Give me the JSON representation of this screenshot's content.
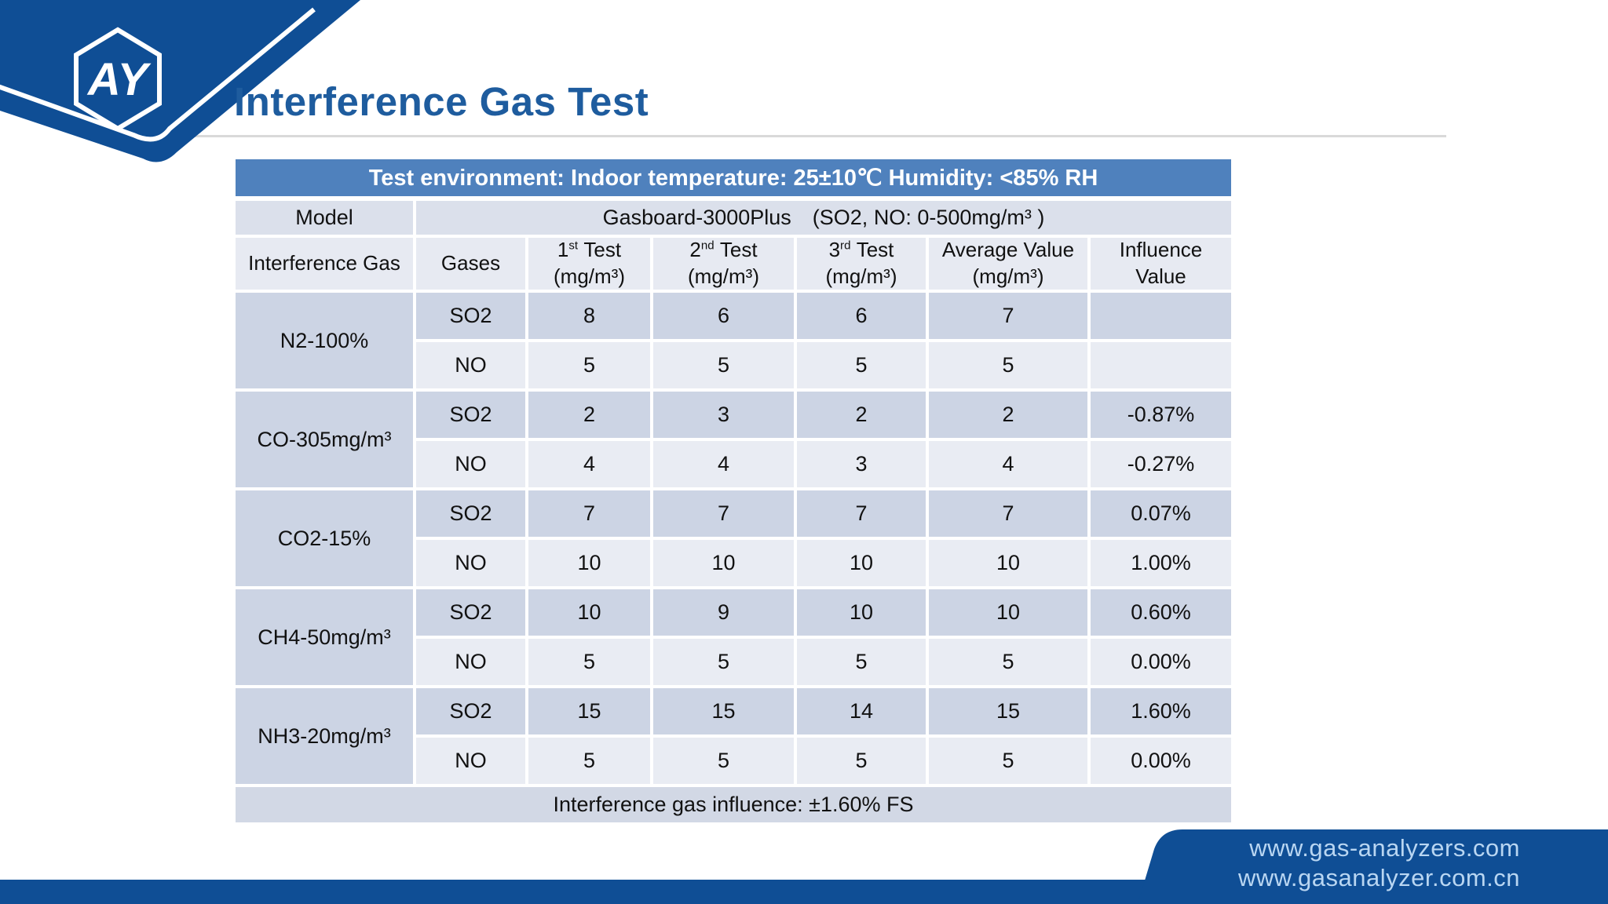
{
  "page": {
    "title": "Interference Gas Test"
  },
  "brand": {
    "logo_text": "AY"
  },
  "table": {
    "env_header": "Test environment: Indoor temperature: 25±10℃ Humidity: <85% RH",
    "model_label": "Model",
    "model_value": "Gasboard-3000Plus (SO2, NO: 0-500mg/m³ )",
    "columns": [
      {
        "label": "Interference Gas"
      },
      {
        "label": "Gases"
      },
      {
        "num": "1",
        "ord": "st",
        "word": "Test",
        "unit": "(mg/m³)"
      },
      {
        "num": "2",
        "ord": "nd",
        "word": "Test",
        "unit": "(mg/m³)"
      },
      {
        "num": "3",
        "ord": "rd",
        "word": "Test",
        "unit": "(mg/m³)"
      },
      {
        "line1": "Average Value",
        "unit": "(mg/m³)"
      },
      {
        "line1": "Influence",
        "line2": "Value"
      }
    ],
    "groups": [
      {
        "gas": "N2-100%",
        "rows": [
          {
            "g": "SO2",
            "t1": "8",
            "t2": "6",
            "t3": "6",
            "avg": "7",
            "inf": ""
          },
          {
            "g": "NO",
            "t1": "5",
            "t2": "5",
            "t3": "5",
            "avg": "5",
            "inf": ""
          }
        ]
      },
      {
        "gas": "CO-305mg/m³",
        "rows": [
          {
            "g": "SO2",
            "t1": "2",
            "t2": "3",
            "t3": "2",
            "avg": "2",
            "inf": "-0.87%"
          },
          {
            "g": "NO",
            "t1": "4",
            "t2": "4",
            "t3": "3",
            "avg": "4",
            "inf": "-0.27%"
          }
        ]
      },
      {
        "gas": "CO2-15%",
        "rows": [
          {
            "g": "SO2",
            "t1": "7",
            "t2": "7",
            "t3": "7",
            "avg": "7",
            "inf": "0.07%"
          },
          {
            "g": "NO",
            "t1": "10",
            "t2": "10",
            "t3": "10",
            "avg": "10",
            "inf": "1.00%"
          }
        ]
      },
      {
        "gas": "CH4-50mg/m³",
        "rows": [
          {
            "g": "SO2",
            "t1": "10",
            "t2": "9",
            "t3": "10",
            "avg": "10",
            "inf": "0.60%"
          },
          {
            "g": "NO",
            "t1": "5",
            "t2": "5",
            "t3": "5",
            "avg": "5",
            "inf": "0.00%"
          }
        ]
      },
      {
        "gas": "NH3-20mg/m³",
        "rows": [
          {
            "g": "SO2",
            "t1": "15",
            "t2": "15",
            "t3": "14",
            "avg": "15",
            "inf": "1.60%"
          },
          {
            "g": "NO",
            "t1": "5",
            "t2": "5",
            "t3": "5",
            "avg": "5",
            "inf": "0.00%"
          }
        ]
      }
    ],
    "footer": "Interference gas influence: ±1.60% FS"
  },
  "footer_links": {
    "line1": "www.gas-analyzers.com",
    "line2": "www.gasanalyzer.com.cn"
  },
  "colors": {
    "accent_blue": "#4f81bd",
    "deep_blue": "#0f4e95",
    "title_blue": "#1e5c9e",
    "row_dark": "#ccd4e4",
    "row_light": "#e9ecf3",
    "model_row": "#dbe0eb",
    "header_row": "#e7eaf2",
    "footer_row": "#d2d8e5",
    "link_text": "#b9d6f2"
  }
}
